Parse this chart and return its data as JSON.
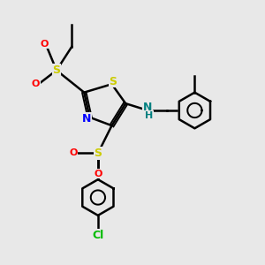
{
  "background_color": "#e8e8e8",
  "fig_size": [
    3.0,
    3.0
  ],
  "dpi": 100,
  "xlim": [
    0.0,
    8.5
  ],
  "ylim": [
    0.5,
    10.0
  ],
  "S_color": "#cccc00",
  "N_color": "#0000ff",
  "NH_color": "#008080",
  "O_color": "#ff0000",
  "Cl_color": "#00bb00",
  "bond_color": "#000000",
  "bond_lw": 1.8,
  "label_fontsize": 9
}
